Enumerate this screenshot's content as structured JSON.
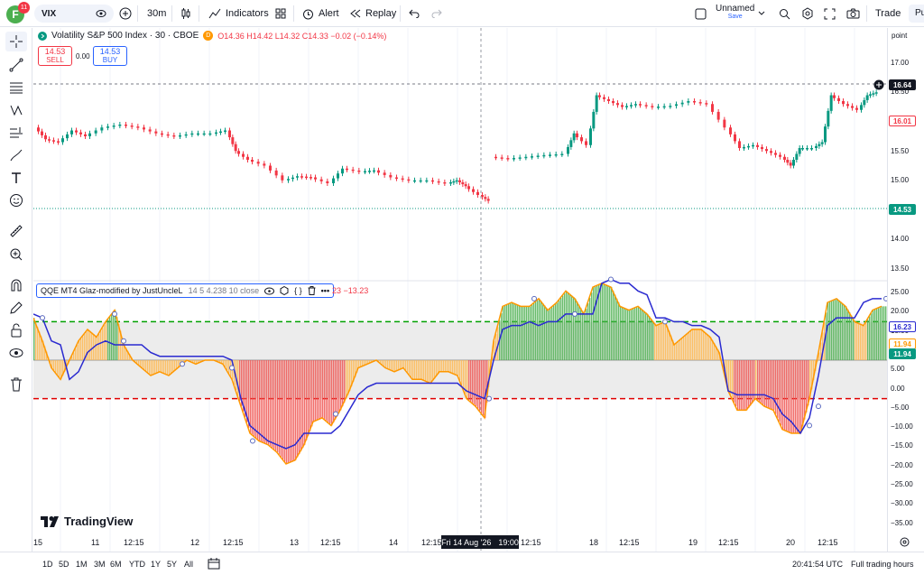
{
  "topbar": {
    "avatar_letter": "F",
    "notifications": "11",
    "symbol": "VIX",
    "interval": "30m",
    "indicators": "Indicators",
    "alert": "Alert",
    "replay": "Replay",
    "layout_name": "Unnamed",
    "save": "Save",
    "trade": "Trade",
    "publish": "Pu"
  },
  "legend": {
    "title": "Volatility S&P 500 Index · 30 · CBOE",
    "data_flag": "D",
    "ohlc": "O14.36  H14.42  L14.32  C14.33  −0.02 (−0.14%)",
    "sell_price": "14.53",
    "sell_label": "SELL",
    "spread": "0.00",
    "buy_price": "14.53",
    "buy_label": "BUY"
  },
  "indicator": {
    "name": "QQE MT4 Glaz-modified by JustUncleL",
    "params": "14 5 4.238 10 close",
    "values": "23  −13.23"
  },
  "price_axis": {
    "mode": "point",
    "ticks": [
      "17.00",
      "16.50",
      "16.00",
      "15.50",
      "15.00",
      "14.50",
      "14.00",
      "13.50"
    ],
    "cursor_price": "16.64",
    "last_price": "16.01",
    "line_price": "14.53"
  },
  "osc_axis": {
    "ticks": [
      "25.00",
      "20.00",
      "15.00",
      "10.00",
      "5.00",
      "0.00",
      "−5.00",
      "−10.00",
      "−15.00",
      "−20.00",
      "−25.00",
      "−30.00",
      "−35.00"
    ],
    "val_blue": "16.23",
    "val_orange": "11.94",
    "val_green": "11.94"
  },
  "time_axis": {
    "labels": [
      "15",
      "11",
      "12:15",
      "12",
      "12:15",
      "13",
      "12:15",
      "14",
      "12:15",
      "12:15",
      "18",
      "12:15",
      "19",
      "12:15",
      "20",
      "12:15"
    ],
    "cursor": "Fri 14 Aug '26",
    "cursor_time": "19:00"
  },
  "bottombar": {
    "ranges": [
      "1D",
      "5D",
      "1M",
      "3M",
      "6M",
      "YTD",
      "1Y",
      "5Y",
      "All"
    ],
    "clock": "20:41:54 UTC",
    "session": "Full trading hours"
  },
  "branding": "TradingView",
  "colors": {
    "up": "#089981",
    "down": "#f23645",
    "blue_line": "#2a2ad0",
    "orange": "#ff9800",
    "green_dash": "#00a000",
    "red_dash": "#e00000"
  }
}
